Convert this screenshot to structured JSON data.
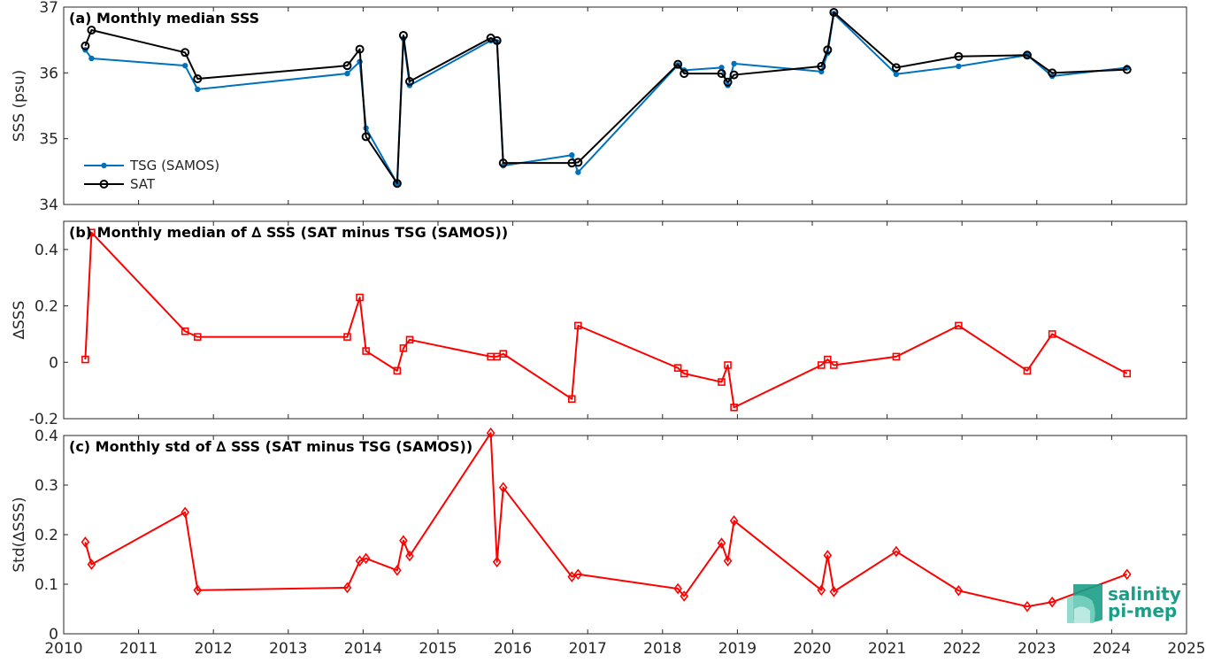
{
  "chart_data": [
    {
      "type": "line",
      "panel": "a",
      "title": "(a) Monthly median SSS",
      "ylabel": "SSS (psu)",
      "ylim": [
        34,
        37
      ],
      "yticks": [
        34,
        35,
        36,
        37
      ],
      "xlim": [
        "2010-01-01",
        "2025-01-01"
      ],
      "legend_position": "lower-left",
      "series": [
        {
          "name": "TSG (SAMOS)",
          "color": "#0072bd",
          "marker": "dot",
          "x": [
            "2010-04-15",
            "2010-05-15",
            "2011-08-15",
            "2011-10-15",
            "2013-10-15",
            "2013-12-15",
            "2014-01-15",
            "2014-06-15",
            "2014-07-15",
            "2014-08-15",
            "2015-09-15",
            "2015-10-15",
            "2015-11-15",
            "2016-10-15",
            "2016-11-15",
            "2018-03-15",
            "2018-04-15",
            "2018-10-15",
            "2018-11-15",
            "2018-12-15",
            "2020-02-15",
            "2020-03-15",
            "2020-04-15",
            "2021-02-15",
            "2021-12-15",
            "2022-11-15",
            "2023-03-15",
            "2024-03-15"
          ],
          "y": [
            36.35,
            36.22,
            36.11,
            35.75,
            35.99,
            36.17,
            35.16,
            34.32,
            36.52,
            35.81,
            36.49,
            36.47,
            34.59,
            34.75,
            34.49,
            36.12,
            36.04,
            36.08,
            35.81,
            36.14,
            36.02,
            36.3,
            36.9,
            35.98,
            36.1,
            36.27,
            35.95,
            36.08
          ]
        },
        {
          "name": "SAT",
          "color": "#000000",
          "marker": "circle",
          "x": [
            "2010-04-15",
            "2010-05-15",
            "2011-08-15",
            "2011-10-15",
            "2013-10-15",
            "2013-12-15",
            "2014-01-15",
            "2014-06-15",
            "2014-07-15",
            "2014-08-15",
            "2015-09-15",
            "2015-10-15",
            "2015-11-15",
            "2016-10-15",
            "2016-11-15",
            "2018-03-15",
            "2018-04-15",
            "2018-10-15",
            "2018-11-15",
            "2018-12-15",
            "2020-02-15",
            "2020-03-15",
            "2020-04-15",
            "2021-02-15",
            "2021-12-15",
            "2022-11-15",
            "2023-03-15",
            "2024-03-15"
          ],
          "y": [
            36.41,
            36.65,
            36.31,
            35.91,
            36.11,
            36.36,
            35.03,
            34.32,
            36.57,
            35.87,
            36.53,
            36.49,
            34.63,
            34.63,
            34.64,
            36.13,
            35.99,
            35.99,
            35.86,
            35.97,
            36.1,
            36.35,
            36.92,
            36.08,
            36.25,
            36.27,
            36.0,
            36.05
          ]
        }
      ]
    },
    {
      "type": "line",
      "panel": "b",
      "title": "(b) Monthly median of ∆ SSS (SAT minus TSG (SAMOS))",
      "ylabel": "∆SSS",
      "ylim": [
        -0.2,
        0.5
      ],
      "yticks": [
        -0.2,
        0,
        0.2,
        0.4
      ],
      "xlim": [
        "2010-01-01",
        "2025-01-01"
      ],
      "series": [
        {
          "name": "",
          "color": "#ff0000",
          "marker": "square",
          "x": [
            "2010-04-15",
            "2010-05-15",
            "2011-08-15",
            "2011-10-15",
            "2013-10-15",
            "2013-12-15",
            "2014-01-15",
            "2014-06-15",
            "2014-07-15",
            "2014-08-15",
            "2015-09-15",
            "2015-10-15",
            "2015-11-15",
            "2016-10-15",
            "2016-11-15",
            "2018-03-15",
            "2018-04-15",
            "2018-10-15",
            "2018-11-15",
            "2018-12-15",
            "2020-02-15",
            "2020-03-15",
            "2020-04-15",
            "2021-02-15",
            "2021-12-15",
            "2022-11-15",
            "2023-03-15",
            "2024-03-15"
          ],
          "y": [
            0.01,
            0.46,
            0.11,
            0.09,
            0.09,
            0.23,
            0.04,
            -0.03,
            0.05,
            0.08,
            0.02,
            0.02,
            0.03,
            -0.13,
            0.13,
            -0.02,
            -0.04,
            -0.07,
            -0.01,
            -0.16,
            -0.01,
            0.01,
            -0.01,
            0.02,
            0.13,
            -0.03,
            0.1,
            -0.04
          ]
        }
      ]
    },
    {
      "type": "line",
      "panel": "c",
      "title": "(c) Monthly std of ∆ SSS (SAT minus TSG (SAMOS))",
      "ylabel": "Std(∆SSS)",
      "ylim": [
        0,
        0.4
      ],
      "yticks": [
        0,
        0.1,
        0.2,
        0.3,
        0.4
      ],
      "xlim": [
        "2010-01-01",
        "2025-01-01"
      ],
      "xticks": [
        "2010",
        "2011",
        "2012",
        "2013",
        "2014",
        "2015",
        "2016",
        "2017",
        "2018",
        "2019",
        "2020",
        "2021",
        "2022",
        "2023",
        "2024",
        "2025"
      ],
      "series": [
        {
          "name": "",
          "color": "#ff0000",
          "marker": "diamond",
          "x": [
            "2010-04-15",
            "2010-05-15",
            "2011-08-15",
            "2011-10-15",
            "2013-10-15",
            "2013-12-15",
            "2014-01-15",
            "2014-06-15",
            "2014-07-15",
            "2014-08-15",
            "2015-09-15",
            "2015-10-15",
            "2015-11-15",
            "2016-10-15",
            "2016-11-15",
            "2018-03-15",
            "2018-04-15",
            "2018-10-15",
            "2018-11-15",
            "2018-12-15",
            "2020-02-15",
            "2020-03-15",
            "2020-04-15",
            "2021-02-15",
            "2021-12-15",
            "2022-11-15",
            "2023-03-15",
            "2024-03-15"
          ],
          "y": [
            0.185,
            0.14,
            0.245,
            0.088,
            0.093,
            0.147,
            0.152,
            0.128,
            0.188,
            0.157,
            0.405,
            0.145,
            0.295,
            0.115,
            0.12,
            0.091,
            0.076,
            0.183,
            0.147,
            0.228,
            0.088,
            0.158,
            0.085,
            0.166,
            0.087,
            0.055,
            0.064,
            0.12
          ]
        }
      ]
    }
  ],
  "logo": {
    "line1": "salinity",
    "line2": "pi-mep",
    "color": "#1a9e87"
  }
}
